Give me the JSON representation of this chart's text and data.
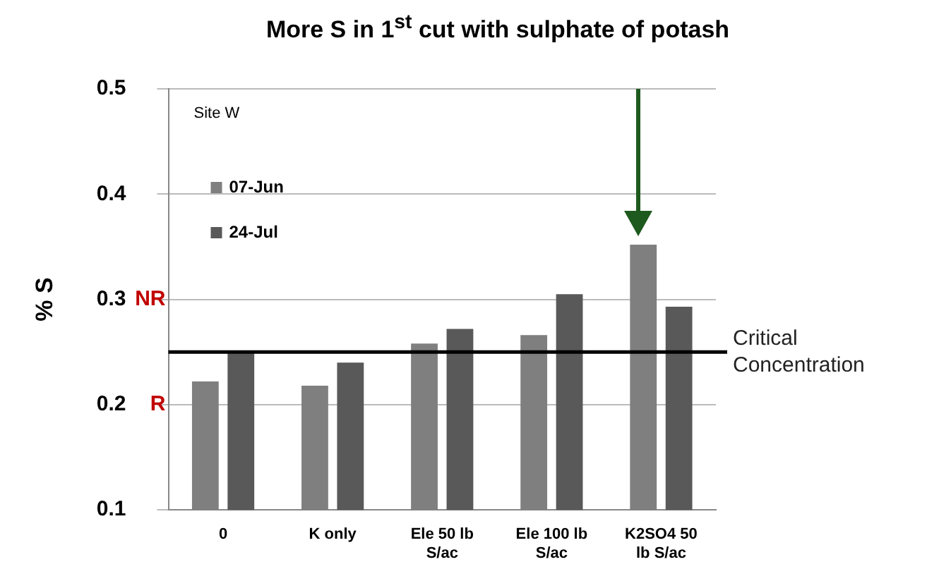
{
  "chart_data": {
    "type": "bar",
    "title": "More S in 1$^{st}$ cut with sulphate of potash",
    "ylabel": "% S",
    "categories": [
      "0",
      "K only",
      "Ele 50 lb S/ac",
      "Ele 100 lb S/ac",
      "K2SO4 50 lb S/ac"
    ],
    "series": [
      {
        "name": "07-Jun",
        "color": "#7f7f7f",
        "values": [
          0.222,
          0.218,
          0.258,
          0.266,
          0.352
        ]
      },
      {
        "name": "24-Jul",
        "color": "#595959",
        "values": [
          0.25,
          0.24,
          0.272,
          0.305,
          0.293
        ]
      }
    ],
    "ylim": [
      0.1,
      0.5
    ],
    "yticks": [
      0.1,
      0.2,
      0.3,
      0.4,
      0.5
    ],
    "grid": "y",
    "legend": "top left",
    "ref_lines": [
      {
        "axis": "y",
        "value": 0.25,
        "label": "Critical Concentration",
        "color": "#000000"
      }
    ],
    "annotations": [
      "Site W",
      "NR",
      "R"
    ]
  }
}
